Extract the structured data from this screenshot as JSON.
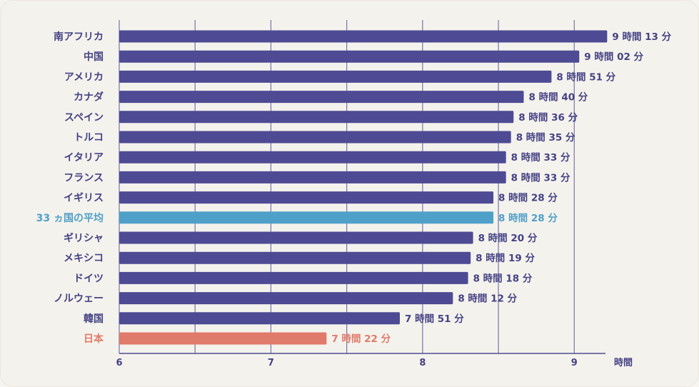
{
  "chart_data": {
    "type": "bar",
    "orientation": "horizontal",
    "unit_label": "時間",
    "xlim": [
      6,
      9.3
    ],
    "x_ticks": [
      "6",
      "7",
      "8",
      "9"
    ],
    "grid": "vertical",
    "colors": {
      "default": "#4e4b94",
      "average": "#4fa0c8",
      "japan": "#e07a6a",
      "text": "#454285",
      "grid": "#4e4b94"
    },
    "bars": [
      {
        "category": "南アフリカ",
        "value": 9.217,
        "label": "9 時間 13 分",
        "highlight": "default"
      },
      {
        "category": "中国",
        "value": 9.033,
        "label": "9 時間 02 分",
        "highlight": "default"
      },
      {
        "category": "アメリカ",
        "value": 8.85,
        "label": "8 時間 51 分",
        "highlight": "default"
      },
      {
        "category": "カナダ",
        "value": 8.667,
        "label": "8 時間 40 分",
        "highlight": "default"
      },
      {
        "category": "スペイン",
        "value": 8.6,
        "label": "8 時間 36 分",
        "highlight": "default"
      },
      {
        "category": "トルコ",
        "value": 8.583,
        "label": "8 時間 35 分",
        "highlight": "default"
      },
      {
        "category": "イタリア",
        "value": 8.55,
        "label": "8 時間 33 分",
        "highlight": "default"
      },
      {
        "category": "フランス",
        "value": 8.55,
        "label": "8 時間 33 分",
        "highlight": "default"
      },
      {
        "category": "イギリス",
        "value": 8.467,
        "label": "8 時間 28 分",
        "highlight": "default"
      },
      {
        "category": "33 ヵ国の平均",
        "value": 8.467,
        "label": "8 時間 28 分",
        "highlight": "average"
      },
      {
        "category": "ギリシャ",
        "value": 8.333,
        "label": "8 時間 20 分",
        "highlight": "default"
      },
      {
        "category": "メキシコ",
        "value": 8.317,
        "label": "8 時間 19 分",
        "highlight": "default"
      },
      {
        "category": "ドイツ",
        "value": 8.3,
        "label": "8 時間 18 分",
        "highlight": "default"
      },
      {
        "category": "ノルウェー",
        "value": 8.2,
        "label": "8 時間 12 分",
        "highlight": "default"
      },
      {
        "category": "韓国",
        "value": 7.85,
        "label": "7 時間 51 分",
        "highlight": "default"
      },
      {
        "category": "日本",
        "value": 7.367,
        "label": "7 時間 22 分",
        "highlight": "japan"
      }
    ]
  }
}
